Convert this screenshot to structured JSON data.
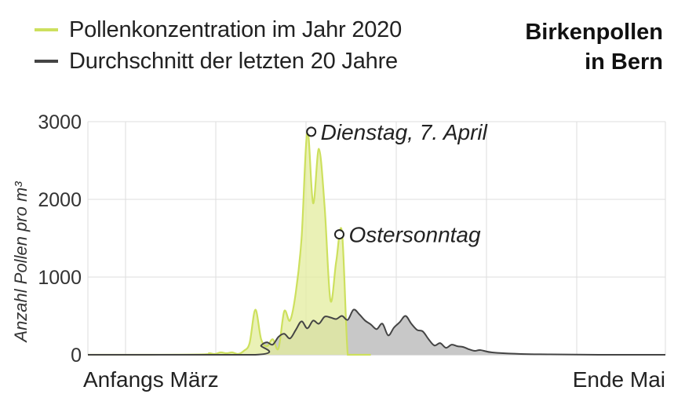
{
  "title_line1": "Birkenpollen",
  "title_line2": "in Bern",
  "legend": [
    {
      "label": "Pollenkonzentration im Jahr 2020",
      "color": "#cde05e"
    },
    {
      "label": "Durchschnitt der letzten 20 Jahre",
      "color": "#444444"
    }
  ],
  "chart_data": {
    "type": "area",
    "title": "Birkenpollen in Bern",
    "ylabel": "Anzahl Pollen pro m³",
    "ylim": [
      0,
      3000
    ],
    "yticks": [
      0,
      1000,
      2000,
      3000
    ],
    "x_labels": {
      "start": "Anfangs März",
      "end": "Ende Mai"
    },
    "xlim": [
      0,
      100
    ],
    "grid": true,
    "colors": {
      "series_2020_fill": "#e3ec9e",
      "series_2020_line": "#cde05e",
      "average_fill": "#c8c8c8",
      "average_line": "#444444"
    },
    "series": [
      {
        "name": "Pollenkonzentration im Jahr 2020",
        "x": [
          0,
          10,
          20,
          21,
          22,
          23,
          24,
          25,
          26,
          27,
          28,
          29,
          30,
          31,
          32,
          33,
          34,
          35,
          36,
          37,
          38,
          39,
          40,
          41,
          42,
          43,
          44,
          45,
          46,
          47,
          48,
          49
        ],
        "y": [
          0,
          0,
          5,
          20,
          10,
          30,
          20,
          30,
          10,
          50,
          150,
          580,
          200,
          110,
          200,
          80,
          560,
          440,
          800,
          1500,
          2880,
          1950,
          2650,
          1900,
          700,
          1200,
          1580,
          0,
          0,
          0,
          0,
          0
        ]
      },
      {
        "name": "Durchschnitt der letzten 20 Jahre",
        "x": [
          0,
          29,
          30,
          31,
          32,
          33,
          34,
          35,
          36,
          37,
          38,
          39,
          40,
          41,
          42,
          43,
          44,
          45,
          46,
          47,
          48,
          49,
          50,
          51,
          52,
          53,
          54,
          55,
          56,
          57,
          58,
          59,
          60,
          61,
          62,
          63,
          64,
          65,
          66,
          67,
          68,
          70,
          75,
          80,
          90,
          100
        ],
        "y": [
          0,
          0,
          120,
          160,
          130,
          230,
          270,
          210,
          320,
          430,
          340,
          440,
          400,
          490,
          480,
          460,
          500,
          450,
          580,
          520,
          440,
          390,
          330,
          400,
          250,
          350,
          420,
          500,
          400,
          320,
          300,
          200,
          120,
          150,
          90,
          130,
          110,
          100,
          70,
          50,
          60,
          30,
          10,
          5,
          0,
          0
        ]
      }
    ],
    "annotations": [
      {
        "label": "Dienstag, 7. April",
        "x": 38,
        "y": 2880
      },
      {
        "label": "Ostersonntag",
        "x": 43,
        "y": 1580
      }
    ]
  }
}
